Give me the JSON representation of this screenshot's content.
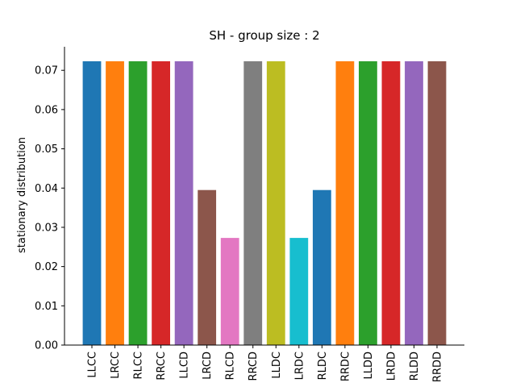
{
  "chart_data": {
    "type": "bar",
    "title": "SH - group size : 2",
    "xlabel": "",
    "ylabel": "stationary distribution",
    "ylim": [
      0,
      0.076
    ],
    "yticks": [
      "0.00",
      "0.01",
      "0.02",
      "0.03",
      "0.04",
      "0.05",
      "0.06",
      "0.07"
    ],
    "grid": false,
    "categories": [
      "LLCC",
      "LRCC",
      "RLCC",
      "RRCC",
      "LLCD",
      "LRCD",
      "RLCD",
      "RRCD",
      "LLDC",
      "LRDC",
      "RLDC",
      "RRDC",
      "LLDD",
      "LRDD",
      "RLDD",
      "RRDD"
    ],
    "values": [
      0.0723,
      0.0723,
      0.0723,
      0.0723,
      0.0723,
      0.0395,
      0.0273,
      0.0723,
      0.0723,
      0.0273,
      0.0395,
      0.0723,
      0.0723,
      0.0723,
      0.0723,
      0.0723
    ],
    "colors": [
      "#1f77b4",
      "#ff7f0e",
      "#2ca02c",
      "#d62728",
      "#9467bd",
      "#8c564b",
      "#e377c2",
      "#7f7f7f",
      "#bcbd22",
      "#17becf",
      "#1f77b4",
      "#ff7f0e",
      "#2ca02c",
      "#d62728",
      "#9467bd",
      "#8c564b"
    ]
  }
}
